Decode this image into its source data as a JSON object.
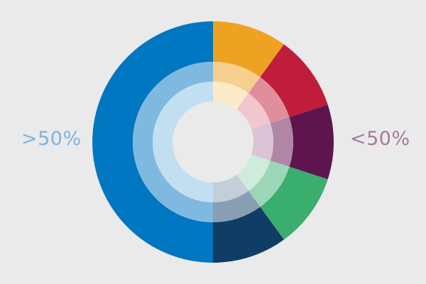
{
  "chart_data": {
    "type": "pie",
    "variant": "concentric donut, three rings",
    "labels": {
      "left": ">50%",
      "right": "<50%"
    },
    "label_colors": {
      "left": "#7fb3dd",
      "right": "#a57a9d"
    },
    "slices": [
      {
        "value": 50,
        "colors": [
          "#0077c0",
          "#80b9e0",
          "#c2dff2"
        ]
      },
      {
        "value": 10,
        "colors": [
          "#eea222",
          "#f5d08e",
          "#fce9c8"
        ]
      },
      {
        "value": 10,
        "colors": [
          "#c01c3c",
          "#e08e9e",
          "#f0c6cf"
        ]
      },
      {
        "value": 10,
        "colors": [
          "#5e154e",
          "#af86a6",
          "#d9c4d6"
        ]
      },
      {
        "value": 10,
        "colors": [
          "#3aae6e",
          "#9dd6b6",
          "#cfebdb"
        ]
      },
      {
        "value": 10,
        "colors": [
          "#0f3d66",
          "#879eb3",
          "#c3ced9"
        ]
      }
    ],
    "background": "#eaeaea"
  }
}
